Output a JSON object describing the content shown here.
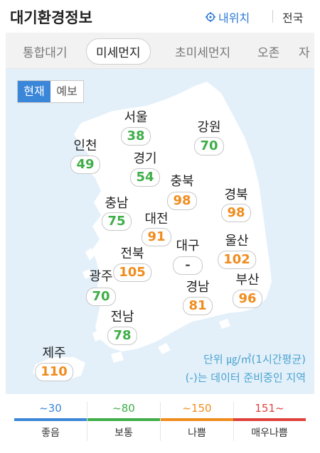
{
  "header": {
    "title": "대기환경정보",
    "my_location": "내위치",
    "nationwide": "전국"
  },
  "tabs": [
    {
      "label": "통합대기",
      "active": false
    },
    {
      "label": "미세먼지",
      "active": true
    },
    {
      "label": "초미세먼지",
      "active": false
    },
    {
      "label": "오존",
      "active": false
    },
    {
      "label": "자",
      "active": false
    }
  ],
  "toggle": {
    "current": "현재",
    "forecast": "예보"
  },
  "regions": [
    {
      "name": "서울",
      "value": "38",
      "status_color": "#3fae49"
    },
    {
      "name": "강원",
      "value": "70",
      "status_color": "#3fae49"
    },
    {
      "name": "인천",
      "value": "49",
      "status_color": "#3fae49"
    },
    {
      "name": "경기",
      "value": "54",
      "status_color": "#3fae49"
    },
    {
      "name": "충북",
      "value": "98",
      "status_color": "#f08c1e"
    },
    {
      "name": "경북",
      "value": "98",
      "status_color": "#f08c1e"
    },
    {
      "name": "충남",
      "value": "75",
      "status_color": "#3fae49"
    },
    {
      "name": "대전",
      "value": "91",
      "status_color": "#f08c1e"
    },
    {
      "name": "대구",
      "value": "-",
      "status_color": "#555555"
    },
    {
      "name": "울산",
      "value": "102",
      "status_color": "#f08c1e"
    },
    {
      "name": "전북",
      "value": "105",
      "status_color": "#f08c1e"
    },
    {
      "name": "광주",
      "value": "70",
      "status_color": "#3fae49"
    },
    {
      "name": "경남",
      "value": "81",
      "status_color": "#f08c1e"
    },
    {
      "name": "부산",
      "value": "96",
      "status_color": "#f08c1e"
    },
    {
      "name": "전남",
      "value": "78",
      "status_color": "#3fae49"
    },
    {
      "name": "제주",
      "value": "110",
      "status_color": "#f08c1e"
    }
  ],
  "map_notes": {
    "unit": "단위 ㎍/㎥(1시간평균)",
    "pending": "(-)는 데이터 준비중인 지역"
  },
  "legend": [
    {
      "range": "~30",
      "label": "좋음",
      "color": "#3a86d8"
    },
    {
      "range": "~80",
      "label": "보통",
      "color": "#3fae49"
    },
    {
      "range": "~150",
      "label": "나쁨",
      "color": "#f08c1e"
    },
    {
      "range": "151~",
      "label": "매우나쁨",
      "color": "#e0413c"
    }
  ],
  "colors": {
    "accent": "#2e7bd6",
    "map_background": "#e3f0fa",
    "land": "#ffffff"
  }
}
